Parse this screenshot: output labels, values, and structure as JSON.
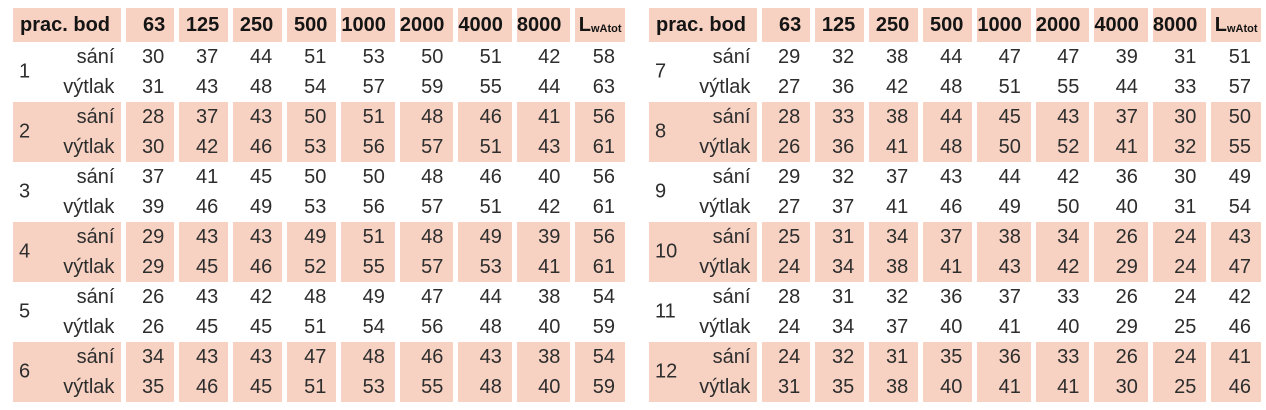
{
  "colors": {
    "band": "#f7d2c2",
    "text": "#2d2d2d",
    "header_text": "#141414"
  },
  "tables": [
    {
      "header": {
        "label": "prac. bod",
        "freqs": [
          "63",
          "125",
          "250",
          "500",
          "1000",
          "2000",
          "4000",
          "8000"
        ],
        "lwa_main": "L",
        "lwa_sub": "wAtot"
      },
      "groups": [
        {
          "id": "1",
          "shaded": false,
          "rows": [
            {
              "label": "sání",
              "values": [
                30,
                37,
                44,
                51,
                53,
                50,
                51,
                42,
                58
              ]
            },
            {
              "label": "výtlak",
              "values": [
                31,
                43,
                48,
                54,
                57,
                59,
                55,
                44,
                63
              ]
            }
          ]
        },
        {
          "id": "2",
          "shaded": true,
          "rows": [
            {
              "label": "sání",
              "values": [
                28,
                37,
                43,
                50,
                51,
                48,
                46,
                41,
                56
              ]
            },
            {
              "label": "výtlak",
              "values": [
                30,
                42,
                46,
                53,
                56,
                57,
                51,
                43,
                61
              ]
            }
          ]
        },
        {
          "id": "3",
          "shaded": false,
          "rows": [
            {
              "label": "sání",
              "values": [
                37,
                41,
                45,
                50,
                50,
                48,
                46,
                40,
                56
              ]
            },
            {
              "label": "výtlak",
              "values": [
                39,
                46,
                49,
                53,
                56,
                57,
                51,
                42,
                61
              ]
            }
          ]
        },
        {
          "id": "4",
          "shaded": true,
          "rows": [
            {
              "label": "sání",
              "values": [
                29,
                43,
                43,
                49,
                51,
                48,
                49,
                39,
                56
              ]
            },
            {
              "label": "výtlak",
              "values": [
                29,
                45,
                46,
                52,
                55,
                57,
                53,
                41,
                61
              ]
            }
          ]
        },
        {
          "id": "5",
          "shaded": false,
          "rows": [
            {
              "label": "sání",
              "values": [
                26,
                43,
                42,
                48,
                49,
                47,
                44,
                38,
                54
              ]
            },
            {
              "label": "výtlak",
              "values": [
                26,
                45,
                45,
                51,
                54,
                56,
                48,
                40,
                59
              ]
            }
          ]
        },
        {
          "id": "6",
          "shaded": true,
          "rows": [
            {
              "label": "sání",
              "values": [
                34,
                43,
                43,
                47,
                48,
                46,
                43,
                38,
                54
              ]
            },
            {
              "label": "výtlak",
              "values": [
                35,
                46,
                45,
                51,
                53,
                55,
                48,
                40,
                59
              ]
            }
          ]
        }
      ]
    },
    {
      "header": {
        "label": "prac. bod",
        "freqs": [
          "63",
          "125",
          "250",
          "500",
          "1000",
          "2000",
          "4000",
          "8000"
        ],
        "lwa_main": "L",
        "lwa_sub": "wAtot"
      },
      "groups": [
        {
          "id": "7",
          "shaded": false,
          "rows": [
            {
              "label": "sání",
              "values": [
                29,
                32,
                38,
                44,
                47,
                47,
                39,
                31,
                51
              ]
            },
            {
              "label": "výtlak",
              "values": [
                27,
                36,
                42,
                48,
                51,
                55,
                44,
                33,
                57
              ]
            }
          ]
        },
        {
          "id": "8",
          "shaded": true,
          "rows": [
            {
              "label": "sání",
              "values": [
                28,
                33,
                38,
                44,
                45,
                43,
                37,
                30,
                50
              ]
            },
            {
              "label": "výtlak",
              "values": [
                26,
                36,
                41,
                48,
                50,
                52,
                41,
                32,
                55
              ]
            }
          ]
        },
        {
          "id": "9",
          "shaded": false,
          "rows": [
            {
              "label": "sání",
              "values": [
                29,
                32,
                37,
                43,
                44,
                42,
                36,
                30,
                49
              ]
            },
            {
              "label": "výtlak",
              "values": [
                27,
                37,
                41,
                46,
                49,
                50,
                40,
                31,
                54
              ]
            }
          ]
        },
        {
          "id": "10",
          "shaded": true,
          "rows": [
            {
              "label": "sání",
              "values": [
                25,
                31,
                34,
                37,
                38,
                34,
                26,
                24,
                43
              ]
            },
            {
              "label": "výtlak",
              "values": [
                24,
                34,
                38,
                41,
                43,
                42,
                29,
                24,
                47
              ]
            }
          ]
        },
        {
          "id": "11",
          "shaded": false,
          "rows": [
            {
              "label": "sání",
              "values": [
                28,
                31,
                32,
                36,
                37,
                33,
                26,
                24,
                42
              ]
            },
            {
              "label": "výtlak",
              "values": [
                24,
                34,
                37,
                40,
                41,
                40,
                29,
                25,
                46
              ]
            }
          ]
        },
        {
          "id": "12",
          "shaded": true,
          "rows": [
            {
              "label": "sání",
              "values": [
                24,
                32,
                31,
                35,
                36,
                33,
                26,
                24,
                41
              ]
            },
            {
              "label": "výtlak",
              "values": [
                31,
                35,
                38,
                40,
                41,
                41,
                30,
                25,
                46
              ]
            }
          ]
        }
      ]
    }
  ]
}
